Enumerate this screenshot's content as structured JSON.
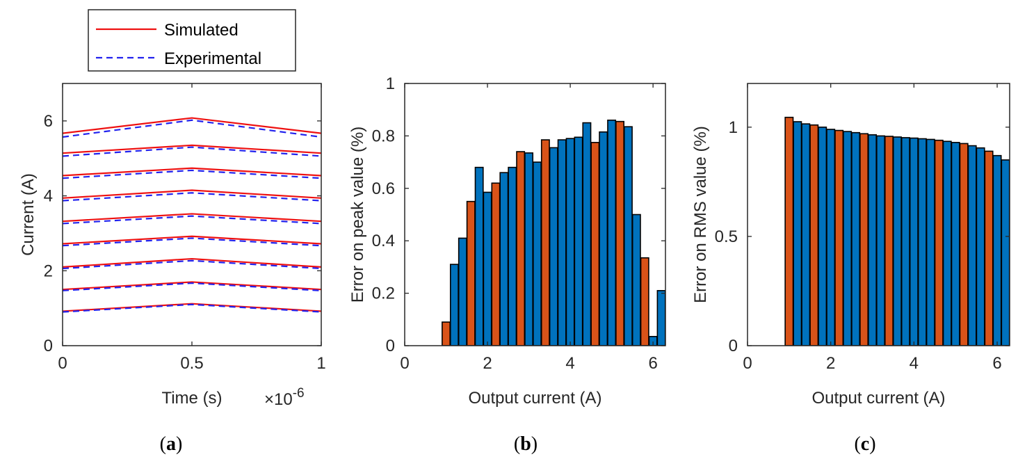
{
  "colors": {
    "simulated": "#ee1111",
    "experimental": "#2222ee",
    "bar_orange": "#d95319",
    "bar_blue": "#0072bd"
  },
  "chart_data": [
    {
      "id": "a",
      "type": "line",
      "caption_letter": "a",
      "xlabel": "Time (s)",
      "x_exponent_prefix": "×10",
      "x_exponent": "-6",
      "ylabel": "Current (A)",
      "xlim": [
        0,
        1
      ],
      "ylim": [
        0,
        7
      ],
      "xticks": [
        0,
        0.5,
        1
      ],
      "xtick_labels": [
        "0",
        "0.5",
        "1"
      ],
      "yticks": [
        0,
        2,
        4,
        6
      ],
      "ytick_labels": [
        "0",
        "2",
        "4",
        "6"
      ],
      "legend": {
        "position": "top",
        "entries": [
          "Simulated",
          "Experimental"
        ]
      },
      "series": [
        {
          "name": "Simulated",
          "style": "solid",
          "x": [
            0,
            0.5,
            1
          ],
          "curves": [
            [
              0.92,
              1.12,
              0.92
            ],
            [
              1.5,
              1.7,
              1.5
            ],
            [
              2.1,
              2.32,
              2.1
            ],
            [
              2.72,
              2.92,
              2.72
            ],
            [
              3.32,
              3.52,
              3.32
            ],
            [
              3.94,
              4.15,
              3.94
            ],
            [
              4.54,
              4.74,
              4.54
            ],
            [
              5.14,
              5.35,
              5.14
            ],
            [
              5.67,
              6.08,
              5.67
            ]
          ]
        },
        {
          "name": "Experimental",
          "style": "dashed",
          "x": [
            0,
            0.5,
            1
          ],
          "curves": [
            [
              0.9,
              1.1,
              0.9
            ],
            [
              1.47,
              1.67,
              1.47
            ],
            [
              2.06,
              2.27,
              2.06
            ],
            [
              2.67,
              2.87,
              2.67
            ],
            [
              3.26,
              3.46,
              3.26
            ],
            [
              3.87,
              4.08,
              3.87
            ],
            [
              4.47,
              4.68,
              4.47
            ],
            [
              5.06,
              5.3,
              5.06
            ],
            [
              5.57,
              6.02,
              5.57
            ]
          ]
        }
      ]
    },
    {
      "id": "b",
      "type": "bar",
      "caption_letter": "b",
      "xlabel": "Output current (A)",
      "ylabel": "Error on peak value (%)",
      "xlim": [
        0,
        6.3
      ],
      "ylim": [
        0,
        1
      ],
      "xticks": [
        0,
        2,
        4,
        6
      ],
      "xtick_labels": [
        "0",
        "2",
        "4",
        "6"
      ],
      "yticks": [
        0,
        0.2,
        0.4,
        0.6,
        0.8,
        1
      ],
      "ytick_labels": [
        "0",
        "0.2",
        "0.4",
        "0.6",
        "0.8",
        "1"
      ],
      "bar_width": 0.19,
      "bars": [
        {
          "x": 1.0,
          "y": 0.09,
          "c": "orange"
        },
        {
          "x": 1.2,
          "y": 0.31,
          "c": "blue"
        },
        {
          "x": 1.4,
          "y": 0.41,
          "c": "blue"
        },
        {
          "x": 1.6,
          "y": 0.55,
          "c": "orange"
        },
        {
          "x": 1.8,
          "y": 0.68,
          "c": "blue"
        },
        {
          "x": 2.0,
          "y": 0.585,
          "c": "blue"
        },
        {
          "x": 2.2,
          "y": 0.62,
          "c": "orange"
        },
        {
          "x": 2.4,
          "y": 0.66,
          "c": "blue"
        },
        {
          "x": 2.6,
          "y": 0.68,
          "c": "blue"
        },
        {
          "x": 2.8,
          "y": 0.74,
          "c": "orange"
        },
        {
          "x": 3.0,
          "y": 0.735,
          "c": "blue"
        },
        {
          "x": 3.2,
          "y": 0.7,
          "c": "blue"
        },
        {
          "x": 3.4,
          "y": 0.785,
          "c": "orange"
        },
        {
          "x": 3.6,
          "y": 0.755,
          "c": "blue"
        },
        {
          "x": 3.8,
          "y": 0.785,
          "c": "blue"
        },
        {
          "x": 4.0,
          "y": 0.79,
          "c": "blue"
        },
        {
          "x": 4.2,
          "y": 0.795,
          "c": "blue"
        },
        {
          "x": 4.4,
          "y": 0.85,
          "c": "blue"
        },
        {
          "x": 4.6,
          "y": 0.775,
          "c": "orange"
        },
        {
          "x": 4.8,
          "y": 0.815,
          "c": "blue"
        },
        {
          "x": 5.0,
          "y": 0.86,
          "c": "blue"
        },
        {
          "x": 5.2,
          "y": 0.855,
          "c": "orange"
        },
        {
          "x": 5.4,
          "y": 0.835,
          "c": "blue"
        },
        {
          "x": 5.6,
          "y": 0.5,
          "c": "blue"
        },
        {
          "x": 5.8,
          "y": 0.335,
          "c": "orange"
        },
        {
          "x": 6.0,
          "y": 0.035,
          "c": "blue"
        },
        {
          "x": 6.2,
          "y": 0.21,
          "c": "blue"
        }
      ]
    },
    {
      "id": "c",
      "type": "bar",
      "caption_letter": "c",
      "xlabel": "Output current (A)",
      "ylabel": "Error on RMS value (%)",
      "xlim": [
        0,
        6.3
      ],
      "ylim": [
        0,
        1.2
      ],
      "xticks": [
        0,
        2,
        4,
        6
      ],
      "xtick_labels": [
        "0",
        "2",
        "4",
        "6"
      ],
      "yticks": [
        0,
        0.5,
        1
      ],
      "ytick_labels": [
        "0",
        "0.5",
        "1"
      ],
      "bar_width": 0.19,
      "bars": [
        {
          "x": 1.0,
          "y": 1.045,
          "c": "orange"
        },
        {
          "x": 1.2,
          "y": 1.025,
          "c": "blue"
        },
        {
          "x": 1.4,
          "y": 1.015,
          "c": "blue"
        },
        {
          "x": 1.6,
          "y": 1.01,
          "c": "orange"
        },
        {
          "x": 1.8,
          "y": 1.0,
          "c": "blue"
        },
        {
          "x": 2.0,
          "y": 0.99,
          "c": "blue"
        },
        {
          "x": 2.2,
          "y": 0.985,
          "c": "orange"
        },
        {
          "x": 2.4,
          "y": 0.98,
          "c": "blue"
        },
        {
          "x": 2.6,
          "y": 0.975,
          "c": "blue"
        },
        {
          "x": 2.8,
          "y": 0.97,
          "c": "orange"
        },
        {
          "x": 3.0,
          "y": 0.965,
          "c": "blue"
        },
        {
          "x": 3.2,
          "y": 0.96,
          "c": "blue"
        },
        {
          "x": 3.4,
          "y": 0.958,
          "c": "orange"
        },
        {
          "x": 3.6,
          "y": 0.955,
          "c": "blue"
        },
        {
          "x": 3.8,
          "y": 0.952,
          "c": "blue"
        },
        {
          "x": 4.0,
          "y": 0.95,
          "c": "blue"
        },
        {
          "x": 4.2,
          "y": 0.947,
          "c": "blue"
        },
        {
          "x": 4.4,
          "y": 0.944,
          "c": "blue"
        },
        {
          "x": 4.6,
          "y": 0.94,
          "c": "orange"
        },
        {
          "x": 4.8,
          "y": 0.935,
          "c": "blue"
        },
        {
          "x": 5.0,
          "y": 0.93,
          "c": "blue"
        },
        {
          "x": 5.2,
          "y": 0.925,
          "c": "orange"
        },
        {
          "x": 5.4,
          "y": 0.915,
          "c": "blue"
        },
        {
          "x": 5.6,
          "y": 0.905,
          "c": "blue"
        },
        {
          "x": 5.8,
          "y": 0.89,
          "c": "orange"
        },
        {
          "x": 6.0,
          "y": 0.87,
          "c": "blue"
        },
        {
          "x": 6.2,
          "y": 0.85,
          "c": "blue"
        }
      ]
    }
  ]
}
